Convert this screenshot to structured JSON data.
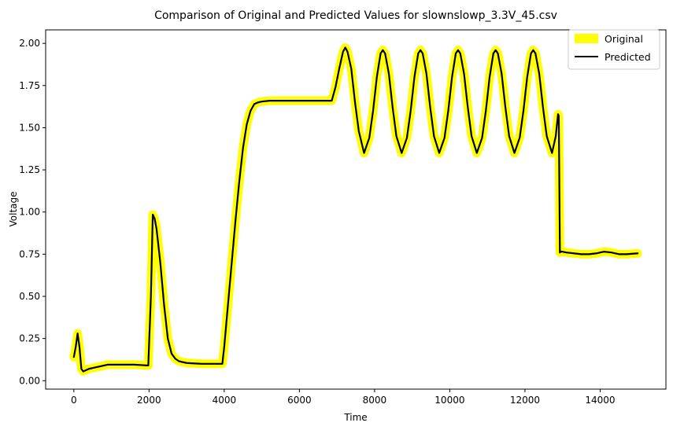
{
  "chart_data": {
    "type": "line",
    "title": "Comparison of Original and Predicted Values for slownslowp_3.3V_45.csv",
    "xlabel": "Time",
    "ylabel": "Voltage",
    "xlim": [
      -750,
      15750
    ],
    "ylim": [
      -0.05,
      2.08
    ],
    "xticks": [
      0,
      2000,
      4000,
      6000,
      8000,
      10000,
      12000,
      14000
    ],
    "xtick_labels": [
      "0",
      "2000",
      "4000",
      "6000",
      "8000",
      "10000",
      "12000",
      "14000"
    ],
    "yticks": [
      0.0,
      0.25,
      0.5,
      0.75,
      1.0,
      1.25,
      1.5,
      1.75,
      2.0
    ],
    "ytick_labels": [
      "0.00",
      "0.25",
      "0.50",
      "0.75",
      "1.00",
      "1.25",
      "1.50",
      "1.75",
      "2.00"
    ],
    "grid": false,
    "legend": {
      "position": "top-right"
    },
    "colors": {
      "original": "#ffff00",
      "predicted": "#000000"
    },
    "series": [
      {
        "name": "Original",
        "x": [
          0,
          50,
          100,
          150,
          200,
          250,
          300,
          400,
          600,
          800,
          900,
          1200,
          1600,
          1980,
          2050,
          2100,
          2150,
          2200,
          2300,
          2400,
          2500,
          2600,
          2700,
          2800,
          3000,
          3400,
          3950,
          4000,
          4100,
          4200,
          4300,
          4400,
          4500,
          4600,
          4700,
          4800,
          4900,
          5000,
          5200,
          5600,
          6000,
          6500,
          6860,
          6960,
          7060,
          7160,
          7220,
          7280,
          7380,
          7480,
          7580,
          7720,
          7860,
          7960,
          8060,
          8160,
          8220,
          8280,
          8380,
          8480,
          8580,
          8720,
          8860,
          8960,
          9060,
          9160,
          9220,
          9280,
          9380,
          9480,
          9580,
          9720,
          9860,
          9960,
          10060,
          10160,
          10220,
          10280,
          10380,
          10480,
          10580,
          10720,
          10860,
          10960,
          11060,
          11160,
          11220,
          11280,
          11380,
          11480,
          11580,
          11720,
          11860,
          11960,
          12060,
          12160,
          12220,
          12280,
          12380,
          12480,
          12580,
          12720,
          12820,
          12880,
          12900,
          12930,
          12950,
          13000,
          13100,
          13300,
          13500,
          13700,
          13900,
          14100,
          14300,
          14500,
          14700,
          15000
        ],
        "y": [
          0.14,
          0.2,
          0.28,
          0.2,
          0.07,
          0.055,
          0.06,
          0.07,
          0.08,
          0.09,
          0.095,
          0.095,
          0.095,
          0.09,
          0.5,
          0.985,
          0.96,
          0.9,
          0.7,
          0.45,
          0.25,
          0.16,
          0.13,
          0.115,
          0.105,
          0.1,
          0.1,
          0.2,
          0.45,
          0.7,
          0.95,
          1.18,
          1.38,
          1.52,
          1.6,
          1.64,
          1.65,
          1.655,
          1.66,
          1.66,
          1.66,
          1.66,
          1.66,
          1.74,
          1.85,
          1.95,
          1.975,
          1.95,
          1.85,
          1.65,
          1.48,
          1.35,
          1.44,
          1.6,
          1.8,
          1.94,
          1.96,
          1.94,
          1.82,
          1.62,
          1.45,
          1.35,
          1.44,
          1.6,
          1.8,
          1.94,
          1.96,
          1.94,
          1.82,
          1.62,
          1.45,
          1.35,
          1.44,
          1.6,
          1.8,
          1.94,
          1.96,
          1.94,
          1.82,
          1.62,
          1.45,
          1.35,
          1.44,
          1.6,
          1.8,
          1.94,
          1.96,
          1.94,
          1.82,
          1.62,
          1.45,
          1.35,
          1.44,
          1.6,
          1.8,
          1.94,
          1.96,
          1.94,
          1.82,
          1.62,
          1.45,
          1.35,
          1.45,
          1.58,
          1.57,
          0.76,
          0.765,
          0.765,
          0.76,
          0.755,
          0.75,
          0.75,
          0.755,
          0.765,
          0.76,
          0.75,
          0.75,
          0.755
        ]
      },
      {
        "name": "Predicted",
        "x": [
          0,
          50,
          100,
          150,
          200,
          250,
          300,
          400,
          600,
          800,
          900,
          1200,
          1600,
          1980,
          2050,
          2100,
          2150,
          2200,
          2300,
          2400,
          2500,
          2600,
          2700,
          2800,
          3000,
          3400,
          3950,
          4000,
          4100,
          4200,
          4300,
          4400,
          4500,
          4600,
          4700,
          4800,
          4900,
          5000,
          5200,
          5600,
          6000,
          6500,
          6860,
          6960,
          7060,
          7160,
          7220,
          7280,
          7380,
          7480,
          7580,
          7720,
          7860,
          7960,
          8060,
          8160,
          8220,
          8280,
          8380,
          8480,
          8580,
          8720,
          8860,
          8960,
          9060,
          9160,
          9220,
          9280,
          9380,
          9480,
          9580,
          9720,
          9860,
          9960,
          10060,
          10160,
          10220,
          10280,
          10380,
          10480,
          10580,
          10720,
          10860,
          10960,
          11060,
          11160,
          11220,
          11280,
          11380,
          11480,
          11580,
          11720,
          11860,
          11960,
          12060,
          12160,
          12220,
          12280,
          12380,
          12480,
          12580,
          12720,
          12820,
          12880,
          12900,
          12930,
          12950,
          13000,
          13100,
          13300,
          13500,
          13700,
          13900,
          14100,
          14300,
          14500,
          14700,
          15000
        ],
        "y": [
          0.14,
          0.2,
          0.28,
          0.2,
          0.07,
          0.055,
          0.06,
          0.07,
          0.08,
          0.09,
          0.095,
          0.095,
          0.095,
          0.09,
          0.5,
          0.985,
          0.96,
          0.9,
          0.7,
          0.45,
          0.25,
          0.16,
          0.13,
          0.115,
          0.105,
          0.1,
          0.1,
          0.2,
          0.45,
          0.7,
          0.95,
          1.18,
          1.38,
          1.52,
          1.6,
          1.64,
          1.65,
          1.655,
          1.66,
          1.66,
          1.66,
          1.66,
          1.66,
          1.74,
          1.85,
          1.95,
          1.975,
          1.95,
          1.85,
          1.65,
          1.48,
          1.35,
          1.44,
          1.6,
          1.8,
          1.94,
          1.96,
          1.94,
          1.82,
          1.62,
          1.45,
          1.35,
          1.44,
          1.6,
          1.8,
          1.94,
          1.96,
          1.94,
          1.82,
          1.62,
          1.45,
          1.35,
          1.44,
          1.6,
          1.8,
          1.94,
          1.96,
          1.94,
          1.82,
          1.62,
          1.45,
          1.35,
          1.44,
          1.6,
          1.8,
          1.94,
          1.96,
          1.94,
          1.82,
          1.62,
          1.45,
          1.35,
          1.44,
          1.6,
          1.8,
          1.94,
          1.96,
          1.94,
          1.82,
          1.62,
          1.45,
          1.35,
          1.45,
          1.58,
          1.57,
          0.76,
          0.765,
          0.765,
          0.76,
          0.755,
          0.75,
          0.75,
          0.755,
          0.765,
          0.76,
          0.75,
          0.75,
          0.755
        ]
      }
    ]
  }
}
